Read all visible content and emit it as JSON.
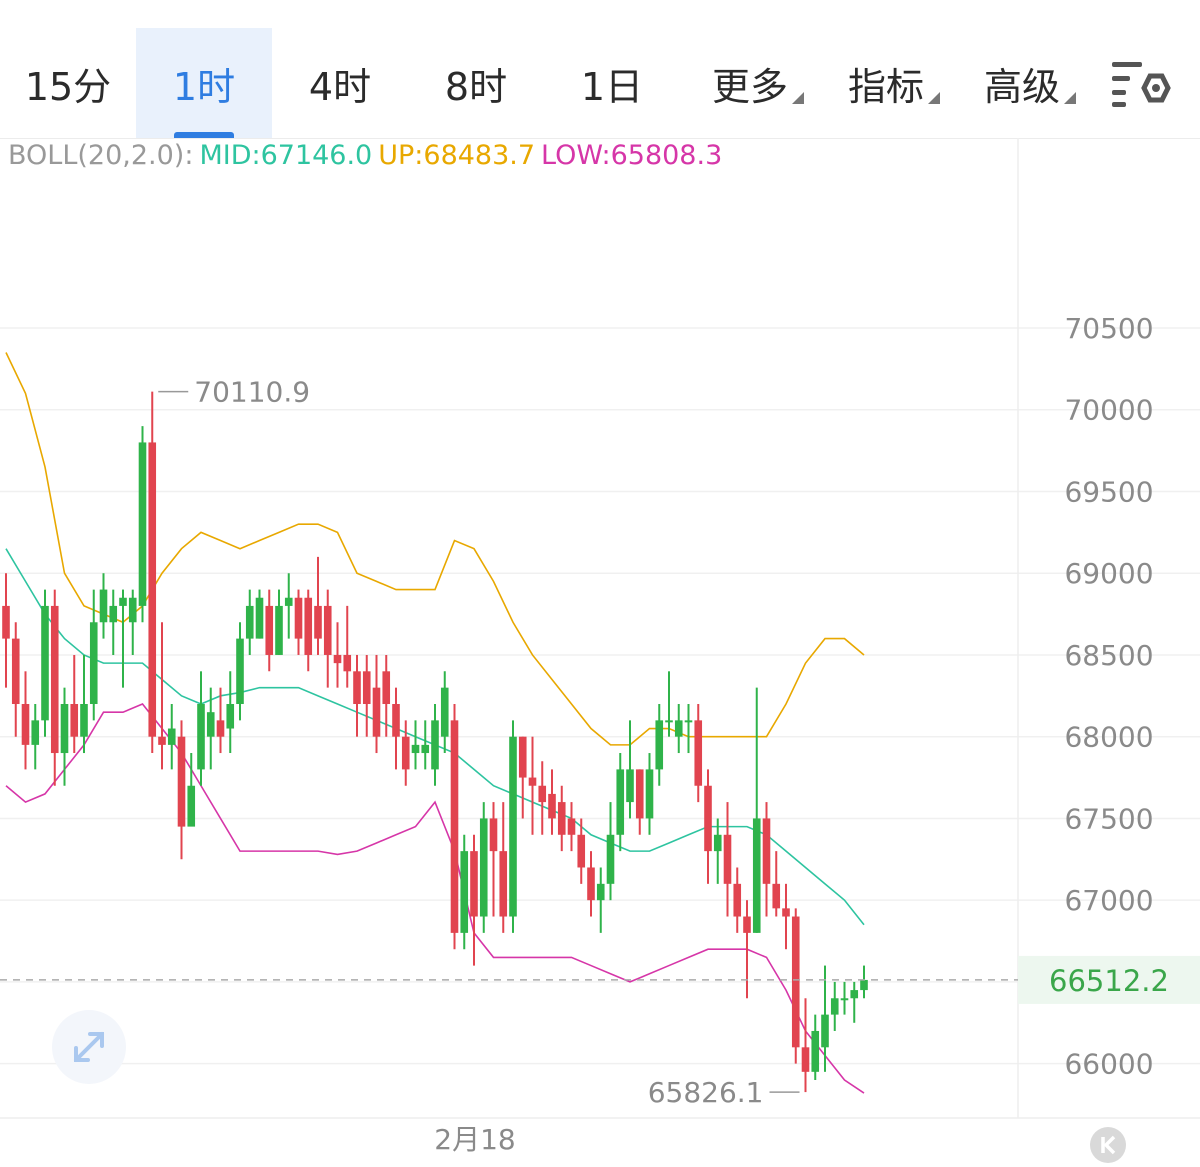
{
  "tabs": [
    {
      "label": "15分",
      "active": false,
      "dropdown": false
    },
    {
      "label": "1时",
      "active": true,
      "dropdown": false
    },
    {
      "label": "4时",
      "active": false,
      "dropdown": false
    },
    {
      "label": "8时",
      "active": false,
      "dropdown": false
    },
    {
      "label": "1日",
      "active": false,
      "dropdown": false
    },
    {
      "label": "更多",
      "active": false,
      "dropdown": true
    },
    {
      "label": "指标",
      "active": false,
      "dropdown": true
    },
    {
      "label": "高级",
      "active": false,
      "dropdown": true
    }
  ],
  "settings_icon": "chart-settings-icon",
  "indicator": {
    "name": "BOLL(20,2.0):",
    "mid": "MID:67146.0",
    "up": "UP:68483.7",
    "low": "LOW:65808.3"
  },
  "colors": {
    "accent": "#2f7de1",
    "up_candle": "#2fb34a",
    "down_candle": "#e1444f",
    "mid": "#2ec4a0",
    "upper": "#e8a800",
    "lower": "#d636a8",
    "price_text": "#3aa64a"
  },
  "chart_data": {
    "type": "candlestick",
    "x_label": "2月18",
    "y_ticks": [
      66000,
      66500,
      67000,
      67500,
      68000,
      68500,
      69000,
      69500,
      70000,
      70500
    ],
    "y_tick_labels": [
      "66000",
      "67000",
      "67500",
      "68000",
      "68500",
      "69000",
      "69500",
      "70000",
      "70500"
    ],
    "ylim": [
      65700,
      70800
    ],
    "high_marker": {
      "value": 70110.9,
      "label": "70110.9"
    },
    "low_marker": {
      "value": 65826.1,
      "label": "65826.1"
    },
    "current_price": {
      "value": 66512.2,
      "label": "66512.2"
    },
    "candles": [
      [
        68800,
        68600,
        69000,
        68300
      ],
      [
        68600,
        68200,
        68700,
        68000
      ],
      [
        68200,
        67950,
        68400,
        67800
      ],
      [
        67950,
        68100,
        68200,
        67800
      ],
      [
        68100,
        68800,
        68900,
        68000
      ],
      [
        68800,
        67900,
        68900,
        67700
      ],
      [
        67900,
        68200,
        68300,
        67700
      ],
      [
        68200,
        68000,
        68500,
        67900
      ],
      [
        68000,
        68200,
        68500,
        67900
      ],
      [
        68200,
        68700,
        68900,
        68100
      ],
      [
        68700,
        68900,
        69000,
        68600
      ],
      [
        68700,
        68800,
        68900,
        68500
      ],
      [
        68800,
        68850,
        68900,
        68300
      ],
      [
        68700,
        68850,
        68900,
        68500
      ],
      [
        68800,
        69800,
        69900,
        68700
      ],
      [
        69800,
        68000,
        70110.9,
        67900
      ],
      [
        68000,
        67950,
        68700,
        67800
      ],
      [
        67950,
        68050,
        68200,
        67800
      ],
      [
        68000,
        67450,
        68100,
        67250
      ],
      [
        67450,
        67700,
        67900,
        67500
      ],
      [
        67800,
        68200,
        68400,
        67700
      ],
      [
        68000,
        68150,
        68300,
        67800
      ],
      [
        68100,
        68000,
        68300,
        67900
      ],
      [
        68050,
        68200,
        68400,
        67900
      ],
      [
        68200,
        68600,
        68700,
        68100
      ],
      [
        68600,
        68800,
        68900,
        68500
      ],
      [
        68600,
        68850,
        68900,
        68600
      ],
      [
        68800,
        68500,
        68900,
        68400
      ],
      [
        68500,
        68800,
        68900,
        68500
      ],
      [
        68800,
        68850,
        69000,
        68600
      ],
      [
        68850,
        68600,
        68900,
        68500
      ],
      [
        68850,
        68500,
        68900,
        68400
      ],
      [
        68800,
        68600,
        69100,
        68500
      ],
      [
        68800,
        68500,
        68900,
        68300
      ],
      [
        68500,
        68450,
        68700,
        68300
      ],
      [
        68500,
        68400,
        68800,
        68300
      ],
      [
        68400,
        68200,
        68500,
        68000
      ],
      [
        68400,
        68200,
        68500,
        68000
      ],
      [
        68300,
        68000,
        68500,
        67900
      ],
      [
        68400,
        68200,
        68500,
        68000
      ],
      [
        68200,
        68000,
        68300,
        67800
      ],
      [
        68000,
        67800,
        68100,
        67700
      ],
      [
        67900,
        67950,
        68100,
        67800
      ],
      [
        67900,
        67950,
        68100,
        67800
      ],
      [
        67800,
        68100,
        68200,
        67700
      ],
      [
        68000,
        68300,
        68400,
        67900
      ],
      [
        68100,
        66800,
        68200,
        66700
      ],
      [
        66800,
        67300,
        67400,
        66700
      ],
      [
        67300,
        66900,
        67400,
        66600
      ],
      [
        66900,
        67500,
        67600,
        66800
      ],
      [
        67500,
        67300,
        67600,
        66900
      ],
      [
        67300,
        66900,
        67600,
        66800
      ],
      [
        66900,
        68000,
        68100,
        66800
      ],
      [
        68000,
        67750,
        68000,
        67500
      ],
      [
        67750,
        67700,
        68000,
        67400
      ],
      [
        67700,
        67600,
        67850,
        67400
      ],
      [
        67650,
        67500,
        67800,
        67400
      ],
      [
        67600,
        67400,
        67700,
        67300
      ],
      [
        67500,
        67400,
        67600,
        67300
      ],
      [
        67400,
        67200,
        67500,
        67100
      ],
      [
        67200,
        67000,
        67300,
        66900
      ],
      [
        67000,
        67100,
        67200,
        66800
      ],
      [
        67100,
        67400,
        67600,
        67000
      ],
      [
        67400,
        67800,
        67900,
        67300
      ],
      [
        67600,
        67800,
        68100,
        67500
      ],
      [
        67800,
        67500,
        67800,
        67400
      ],
      [
        67500,
        67800,
        67900,
        67400
      ],
      [
        67800,
        68100,
        68200,
        67700
      ],
      [
        68100,
        68100,
        68400,
        68000
      ],
      [
        68000,
        68100,
        68200,
        67900
      ],
      [
        68100,
        68100,
        68200,
        67900
      ],
      [
        68100,
        67700,
        68200,
        67600
      ],
      [
        67700,
        67300,
        67800,
        67100
      ],
      [
        67300,
        67400,
        67500,
        67100
      ],
      [
        67400,
        67100,
        67600,
        66900
      ],
      [
        67100,
        66900,
        67200,
        66800
      ],
      [
        66900,
        66800,
        67000,
        66400
      ],
      [
        66800,
        67500,
        68300,
        66800
      ],
      [
        67500,
        67100,
        67600,
        66900
      ],
      [
        67100,
        66950,
        67300,
        66900
      ],
      [
        66950,
        66900,
        67100,
        66700
      ],
      [
        66900,
        66100,
        66950,
        66000
      ],
      [
        66100,
        65950,
        66400,
        65826.1
      ],
      [
        65950,
        66200,
        66300,
        65900
      ],
      [
        66100,
        66300,
        66600,
        65950
      ],
      [
        66300,
        66400,
        66500,
        66200
      ],
      [
        66400,
        66400,
        66500,
        66300
      ],
      [
        66400,
        66450,
        66500,
        66250
      ],
      [
        66450,
        66512.2,
        66600,
        66400
      ]
    ],
    "bands": {
      "mid": [
        [
          0,
          69150
        ],
        [
          2,
          68950
        ],
        [
          4,
          68750
        ],
        [
          6,
          68600
        ],
        [
          8,
          68500
        ],
        [
          10,
          68450
        ],
        [
          12,
          68450
        ],
        [
          14,
          68450
        ],
        [
          16,
          68350
        ],
        [
          18,
          68250
        ],
        [
          20,
          68200
        ],
        [
          22,
          68250
        ],
        [
          24,
          68270
        ],
        [
          26,
          68300
        ],
        [
          28,
          68300
        ],
        [
          30,
          68300
        ],
        [
          32,
          68250
        ],
        [
          34,
          68200
        ],
        [
          36,
          68150
        ],
        [
          38,
          68100
        ],
        [
          40,
          68050
        ],
        [
          42,
          68000
        ],
        [
          44,
          67950
        ],
        [
          46,
          67900
        ],
        [
          48,
          67800
        ],
        [
          50,
          67700
        ],
        [
          52,
          67650
        ],
        [
          54,
          67600
        ],
        [
          56,
          67550
        ],
        [
          58,
          67500
        ],
        [
          60,
          67400
        ],
        [
          62,
          67350
        ],
        [
          64,
          67300
        ],
        [
          66,
          67300
        ],
        [
          68,
          67350
        ],
        [
          70,
          67400
        ],
        [
          72,
          67450
        ],
        [
          74,
          67450
        ],
        [
          76,
          67450
        ],
        [
          78,
          67400
        ],
        [
          80,
          67300
        ],
        [
          82,
          67200
        ],
        [
          84,
          67100
        ],
        [
          86,
          67000
        ],
        [
          88,
          66850
        ]
      ],
      "upper": [
        [
          0,
          70350
        ],
        [
          2,
          70100
        ],
        [
          4,
          69650
        ],
        [
          6,
          69000
        ],
        [
          8,
          68800
        ],
        [
          10,
          68750
        ],
        [
          12,
          68700
        ],
        [
          14,
          68800
        ],
        [
          16,
          69000
        ],
        [
          18,
          69150
        ],
        [
          20,
          69250
        ],
        [
          22,
          69200
        ],
        [
          24,
          69150
        ],
        [
          26,
          69200
        ],
        [
          28,
          69250
        ],
        [
          30,
          69300
        ],
        [
          32,
          69300
        ],
        [
          34,
          69250
        ],
        [
          36,
          69000
        ],
        [
          38,
          68950
        ],
        [
          40,
          68900
        ],
        [
          42,
          68900
        ],
        [
          44,
          68900
        ],
        [
          46,
          69200
        ],
        [
          48,
          69150
        ],
        [
          50,
          68950
        ],
        [
          52,
          68700
        ],
        [
          54,
          68500
        ],
        [
          56,
          68350
        ],
        [
          58,
          68200
        ],
        [
          60,
          68050
        ],
        [
          62,
          67950
        ],
        [
          64,
          67950
        ],
        [
          66,
          68050
        ],
        [
          68,
          68050
        ],
        [
          70,
          68000
        ],
        [
          72,
          68000
        ],
        [
          74,
          68000
        ],
        [
          76,
          68000
        ],
        [
          78,
          68000
        ],
        [
          80,
          68200
        ],
        [
          82,
          68450
        ],
        [
          84,
          68600
        ],
        [
          86,
          68600
        ],
        [
          88,
          68500
        ]
      ],
      "lower": [
        [
          0,
          67700
        ],
        [
          2,
          67600
        ],
        [
          4,
          67650
        ],
        [
          6,
          67800
        ],
        [
          8,
          67950
        ],
        [
          10,
          68150
        ],
        [
          12,
          68150
        ],
        [
          14,
          68200
        ],
        [
          16,
          68050
        ],
        [
          18,
          67900
        ],
        [
          20,
          67700
        ],
        [
          22,
          67500
        ],
        [
          24,
          67300
        ],
        [
          26,
          67300
        ],
        [
          28,
          67300
        ],
        [
          30,
          67300
        ],
        [
          32,
          67300
        ],
        [
          34,
          67280
        ],
        [
          36,
          67300
        ],
        [
          38,
          67350
        ],
        [
          40,
          67400
        ],
        [
          42,
          67450
        ],
        [
          44,
          67600
        ],
        [
          46,
          67300
        ],
        [
          48,
          66800
        ],
        [
          50,
          66650
        ],
        [
          52,
          66650
        ],
        [
          54,
          66650
        ],
        [
          56,
          66650
        ],
        [
          58,
          66650
        ],
        [
          60,
          66600
        ],
        [
          62,
          66550
        ],
        [
          64,
          66500
        ],
        [
          66,
          66550
        ],
        [
          68,
          66600
        ],
        [
          70,
          66650
        ],
        [
          72,
          66700
        ],
        [
          74,
          66700
        ],
        [
          76,
          66700
        ],
        [
          78,
          66650
        ],
        [
          80,
          66450
        ],
        [
          82,
          66200
        ],
        [
          84,
          66050
        ],
        [
          86,
          65900
        ],
        [
          88,
          65820
        ]
      ]
    }
  }
}
